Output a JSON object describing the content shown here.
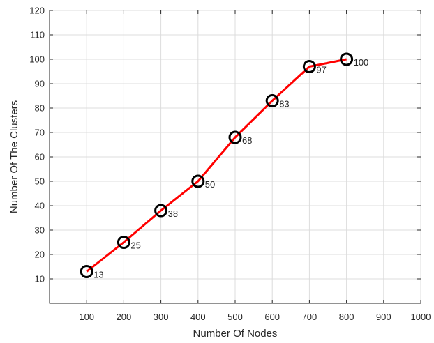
{
  "chart_data": {
    "type": "line",
    "title": "",
    "xlabel": "Number Of Nodes",
    "ylabel": "Number Of The Clusters",
    "xlim": [
      0,
      1000
    ],
    "ylim": [
      0,
      120
    ],
    "xticks": [
      100,
      200,
      300,
      400,
      500,
      600,
      700,
      800,
      900,
      1000
    ],
    "yticks": [
      10,
      20,
      30,
      40,
      50,
      60,
      70,
      80,
      90,
      100,
      110,
      120
    ],
    "grid": true,
    "series": [
      {
        "x": [
          100,
          200,
          300,
          400,
          500,
          600,
          700,
          800
        ],
        "y": [
          13,
          25,
          38,
          50,
          68,
          83,
          97,
          100
        ],
        "labels": [
          "13",
          "25",
          "38",
          "50",
          "68",
          "83",
          "97",
          "100"
        ],
        "color": "#ff0000",
        "marker": "circle",
        "marker_color": "#000000"
      }
    ]
  }
}
